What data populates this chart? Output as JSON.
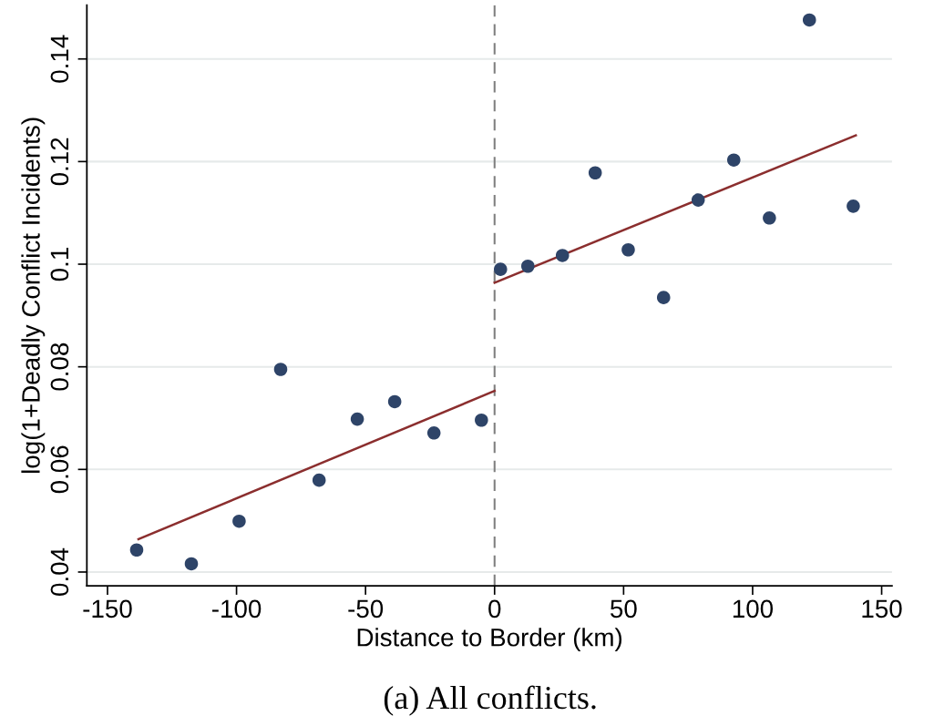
{
  "chart_data": {
    "type": "scatter",
    "xlabel": "Distance to Border (km)",
    "ylabel": "log(1+Deadly Conflict Incidents)",
    "annotations": [
      "(a) All conflicts."
    ],
    "xlim": [
      -158,
      154
    ],
    "ylim": [
      0.0373,
      0.1505
    ],
    "xticks": [
      -150,
      -100,
      -50,
      0,
      50,
      100,
      150
    ],
    "yticks": [
      0.04,
      0.06,
      0.08,
      0.1,
      0.12,
      0.14
    ],
    "grid": "y",
    "legend": false,
    "ref_lines": [
      {
        "axis": "x",
        "value": 0,
        "color": "#808080",
        "line_style": "dashed"
      }
    ],
    "series": [
      {
        "marker": "circle",
        "color": "#2e4468",
        "x": [
          -138.7,
          -117.5,
          -99,
          -82.9,
          -68,
          -53.2,
          -38.7,
          -23.5,
          -5.1,
          2.3,
          12.9,
          26.3,
          39,
          51.8,
          65.5,
          78.9,
          92.7,
          106.5,
          122,
          139
        ],
        "values": [
          0.0443,
          0.0416,
          0.0499,
          0.0795,
          0.0579,
          0.0698,
          0.0732,
          0.0671,
          0.0696,
          0.099,
          0.0996,
          0.1017,
          0.1178,
          0.1028,
          0.0935,
          0.1125,
          0.1203,
          0.109,
          0.1476,
          0.1113
        ]
      },
      {
        "type": "line",
        "color": "#8b2e2e",
        "x": [
          -138,
          0
        ],
        "values": [
          0.0464,
          0.0753
        ]
      },
      {
        "type": "line",
        "color": "#8b2e2e",
        "x": [
          0,
          140
        ],
        "values": [
          0.0964,
          0.1251
        ]
      }
    ]
  }
}
